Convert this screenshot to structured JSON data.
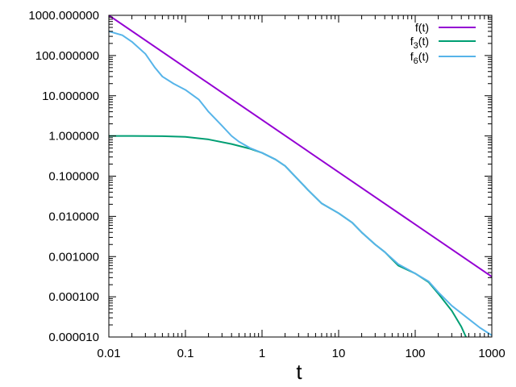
{
  "chart_data": {
    "type": "line",
    "title": "",
    "xlabel": "t",
    "ylabel": "",
    "xscale": "log",
    "yscale": "log",
    "xlim": [
      0.01,
      1000
    ],
    "ylim": [
      1e-05,
      1000
    ],
    "grid": false,
    "legend_position": "top-right",
    "x_ticks": [
      {
        "value": 0.01,
        "label": "0.01"
      },
      {
        "value": 0.1,
        "label": "0.1"
      },
      {
        "value": 1,
        "label": "1"
      },
      {
        "value": 10,
        "label": "10"
      },
      {
        "value": 100,
        "label": "100"
      },
      {
        "value": 1000,
        "label": "1000"
      }
    ],
    "y_ticks": [
      {
        "value": 1000,
        "label": "1000.000000"
      },
      {
        "value": 100,
        "label": "100.000000"
      },
      {
        "value": 10,
        "label": "10.000000"
      },
      {
        "value": 1,
        "label": "1.000000"
      },
      {
        "value": 0.1,
        "label": "0.100000"
      },
      {
        "value": 0.01,
        "label": "0.010000"
      },
      {
        "value": 0.001,
        "label": "0.001000"
      },
      {
        "value": 0.0001,
        "label": "0.000100"
      },
      {
        "value": 1e-05,
        "label": "0.000010"
      }
    ],
    "series": [
      {
        "name": "f(t)",
        "name_base": "f(t)",
        "name_sub": "",
        "name_suffix": "",
        "color": "#9400d3",
        "x": [
          0.01,
          1000
        ],
        "y": [
          1000,
          0.000316
        ]
      },
      {
        "name": "f3(t)",
        "name_base": "f",
        "name_sub": "3",
        "name_suffix": "(t)",
        "color": "#009e73",
        "x": [
          0.01,
          0.02,
          0.05,
          0.1,
          0.2,
          0.4,
          0.7,
          1,
          1.5,
          2,
          3,
          4,
          6,
          10,
          15,
          20,
          30,
          40,
          60,
          100,
          150,
          200,
          300,
          400,
          460
        ],
        "y": [
          1.0,
          1.0,
          0.99,
          0.95,
          0.82,
          0.63,
          0.48,
          0.38,
          0.26,
          0.18,
          0.08,
          0.045,
          0.021,
          0.012,
          0.007,
          0.004,
          0.002,
          0.0013,
          0.0006,
          0.00038,
          0.00023,
          0.00012,
          4.5e-05,
          1.8e-05,
          1e-05
        ]
      },
      {
        "name": "f6(t)",
        "name_base": "f",
        "name_sub": "6",
        "name_suffix": "(t)",
        "color": "#56b4e9",
        "x": [
          0.01,
          0.015,
          0.02,
          0.03,
          0.04,
          0.05,
          0.07,
          0.1,
          0.15,
          0.2,
          0.3,
          0.4,
          0.5,
          0.7,
          1,
          1.5,
          2,
          3,
          4,
          6,
          10,
          15,
          20,
          30,
          40,
          60,
          100,
          150,
          200,
          300,
          500,
          700,
          1000
        ],
        "y": [
          400,
          320,
          220,
          110,
          50,
          30,
          20,
          14,
          8,
          4,
          1.8,
          1.0,
          0.72,
          0.5,
          0.38,
          0.26,
          0.18,
          0.08,
          0.045,
          0.021,
          0.012,
          0.007,
          0.004,
          0.002,
          0.0013,
          0.00065,
          0.00038,
          0.00024,
          0.00013,
          6e-05,
          2.8e-05,
          1.7e-05,
          1.1e-05
        ]
      }
    ]
  }
}
